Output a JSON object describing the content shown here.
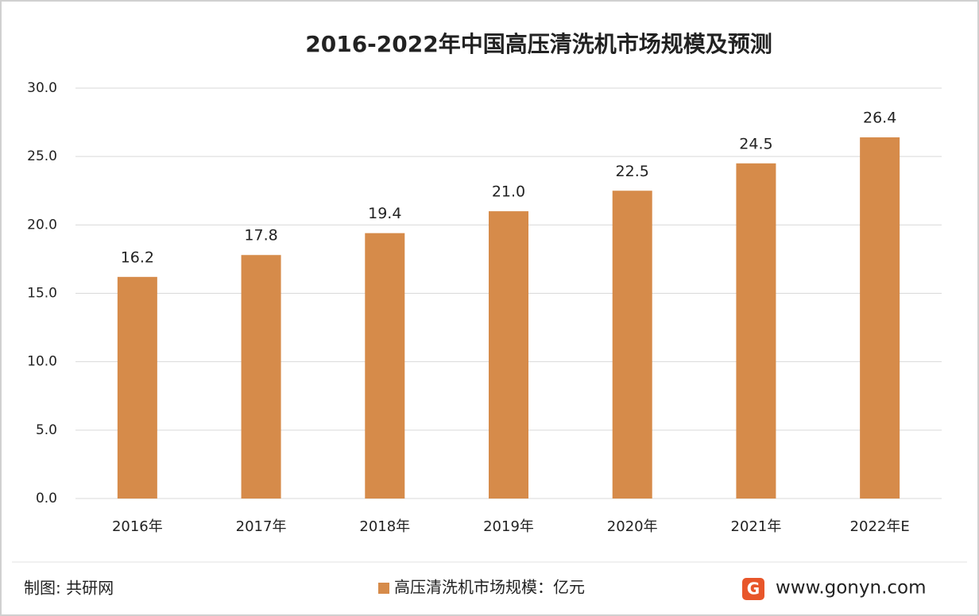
{
  "chart_data": {
    "type": "bar",
    "title": "2016-2022年中国高压清洗机市场规模及预测",
    "categories": [
      "2016年",
      "2017年",
      "2018年",
      "2019年",
      "2020年",
      "2021年",
      "2022年E"
    ],
    "series": [
      {
        "name": "高压清洗机市场规模：亿元",
        "color": "#d68b4a",
        "values": [
          16.2,
          17.8,
          19.4,
          21.0,
          22.5,
          24.5,
          26.4
        ],
        "value_labels": [
          "16.2",
          "17.8",
          "19.4",
          "21.0",
          "22.5",
          "24.5",
          "26.4"
        ]
      }
    ],
    "ylim": [
      0,
      30
    ],
    "yticks": [
      {
        "value": 0,
        "label": "0.0"
      },
      {
        "value": 5,
        "label": "5.0"
      },
      {
        "value": 10,
        "label": "10.0"
      },
      {
        "value": 15,
        "label": "15.0"
      },
      {
        "value": 20,
        "label": "20.0"
      },
      {
        "value": 25,
        "label": "25.0"
      },
      {
        "value": 30,
        "label": "30.0"
      }
    ],
    "grid": true,
    "source": "制图: 共研网",
    "website": "www.gonyn.com"
  }
}
